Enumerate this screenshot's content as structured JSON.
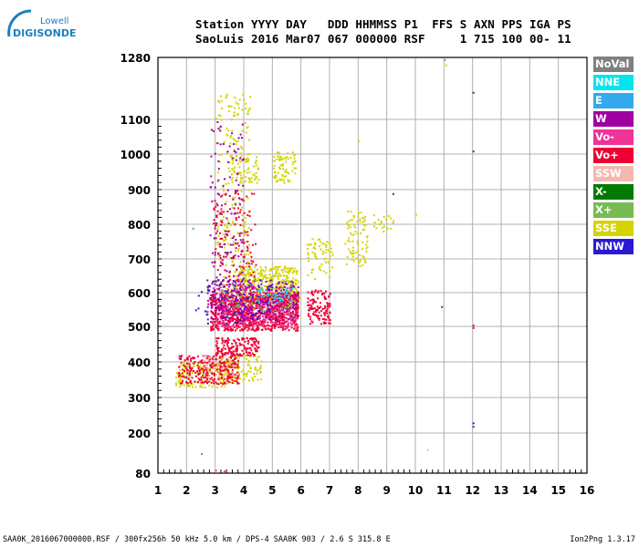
{
  "logo": {
    "line1": "Lowell",
    "line2": "DIGISONDE"
  },
  "header": {
    "line1": "Station YYYY DAY   DDD HHMMSS P1  FFS S AXN PPS IGA PS",
    "line2": "SaoLuis 2016 Mar07 067 000000 RSF     1 715 100 00- 11"
  },
  "legend": [
    {
      "label": "NoVal",
      "color": "#808080"
    },
    {
      "label": "NNE",
      "color": "#00e5ee"
    },
    {
      "label": "E",
      "color": "#33aaee"
    },
    {
      "label": "W",
      "color": "#a000a0"
    },
    {
      "label": "Vo-",
      "color": "#ee3399"
    },
    {
      "label": "Vo+",
      "color": "#ee0033"
    },
    {
      "label": "SSW",
      "color": "#f4b8b0"
    },
    {
      "label": "X-",
      "color": "#007a00"
    },
    {
      "label": "X+",
      "color": "#77bb55"
    },
    {
      "label": "SSE",
      "color": "#d4d400"
    },
    {
      "label": "NNW",
      "color": "#2a1ad0"
    }
  ],
  "footer": {
    "left": "SAA0K_2016067000000.RSF / 300fx256h 50 kHz 5.0 km / DPS-4 SAA0K 903 / 2.6 S 315.8 E",
    "right": "Ion2Png 1.3.17"
  },
  "chart_data": {
    "type": "scatter",
    "xlim": [
      1,
      16
    ],
    "ylim": [
      80,
      1280
    ],
    "x_ticks": [
      "1",
      "2",
      "3",
      "4",
      "5",
      "6",
      "7",
      "8",
      "9",
      "10",
      "11",
      "12",
      "13",
      "14",
      "15",
      "16"
    ],
    "y_ticks": [
      "80",
      "200",
      "300",
      "400",
      "500",
      "600",
      "700",
      "800",
      "900",
      "1000",
      "1100",
      "1280"
    ],
    "y_tick_values": [
      80,
      200,
      300,
      400,
      500,
      600,
      700,
      800,
      900,
      1000,
      1100,
      1280
    ],
    "grid": true,
    "legend_position": "right",
    "clusters": [
      {
        "name": "SSE",
        "color": "#d4d400",
        "x": [
          3.5,
          4.5
        ],
        "y": [
          920,
          1000
        ],
        "n": 60
      },
      {
        "name": "SSE",
        "color": "#d4d400",
        "x": [
          5.0,
          5.8
        ],
        "y": [
          920,
          1010
        ],
        "n": 70
      },
      {
        "name": "SSE",
        "color": "#d4d400",
        "x": [
          6.2,
          7.1
        ],
        "y": [
          640,
          760
        ],
        "n": 60
      },
      {
        "name": "SSE",
        "color": "#d4d400",
        "x": [
          7.5,
          8.3
        ],
        "y": [
          680,
          840
        ],
        "n": 80
      },
      {
        "name": "SSE",
        "color": "#d4d400",
        "x": [
          8.5,
          9.3
        ],
        "y": [
          780,
          830
        ],
        "n": 20
      },
      {
        "name": "SSE",
        "color": "#d4d400",
        "x": [
          3.8,
          5.9
        ],
        "y": [
          560,
          680
        ],
        "n": 400
      },
      {
        "name": "SSE",
        "color": "#d4d400",
        "x": [
          1.6,
          3.8
        ],
        "y": [
          330,
          400
        ],
        "n": 160
      },
      {
        "name": "SSE",
        "color": "#d4d400",
        "x": [
          3.0,
          4.6
        ],
        "y": [
          350,
          420
        ],
        "n": 120
      },
      {
        "name": "SSE",
        "color": "#d4d400",
        "x": [
          3.0,
          4.2
        ],
        "y": [
          600,
          1180
        ],
        "n": 220
      },
      {
        "name": "Vo+",
        "color": "#ee0033",
        "x": [
          2.8,
          5.9
        ],
        "y": [
          490,
          600
        ],
        "n": 900
      },
      {
        "name": "Vo+",
        "color": "#ee0033",
        "x": [
          1.7,
          3.8
        ],
        "y": [
          340,
          420
        ],
        "n": 260
      },
      {
        "name": "Vo+",
        "color": "#ee0033",
        "x": [
          3.0,
          4.5
        ],
        "y": [
          420,
          470
        ],
        "n": 160
      },
      {
        "name": "Vo+",
        "color": "#ee0033",
        "x": [
          6.2,
          7.0
        ],
        "y": [
          510,
          610
        ],
        "n": 120
      },
      {
        "name": "Vo+",
        "color": "#ee0033",
        "x": [
          2.9,
          4.4
        ],
        "y": [
          600,
          900
        ],
        "n": 140
      },
      {
        "name": "Vo-",
        "color": "#ee3399",
        "x": [
          2.9,
          5.9
        ],
        "y": [
          500,
          620
        ],
        "n": 320
      },
      {
        "name": "W",
        "color": "#a000a0",
        "x": [
          2.7,
          5.9
        ],
        "y": [
          520,
          640
        ],
        "n": 360
      },
      {
        "name": "W",
        "color": "#a000a0",
        "x": [
          2.8,
          4.0
        ],
        "y": [
          600,
          1100
        ],
        "n": 120
      },
      {
        "name": "NNW",
        "color": "#2a1ad0",
        "x": [
          2.3,
          5.0
        ],
        "y": [
          510,
          640
        ],
        "n": 60
      },
      {
        "name": "X+",
        "color": "#77bb55",
        "x": [
          3.2,
          5.7
        ],
        "y": [
          540,
          640
        ],
        "n": 70
      },
      {
        "name": "NNE",
        "color": "#00e5ee",
        "x": [
          4.5,
          5.7
        ],
        "y": [
          570,
          620
        ],
        "n": 30
      },
      {
        "name": "SSW",
        "color": "#f4b8b0",
        "x": [
          2.5,
          3.8
        ],
        "y": [
          340,
          420
        ],
        "n": 40
      }
    ],
    "points": [
      {
        "x": 12.0,
        "y": 1180,
        "color": "#a000a0"
      },
      {
        "x": 12.0,
        "y": 1010,
        "color": "#a000a0"
      },
      {
        "x": 12.0,
        "y": 505,
        "color": "#ee0033"
      },
      {
        "x": 12.0,
        "y": 498,
        "color": "#ee0033"
      },
      {
        "x": 12.0,
        "y": 230,
        "color": "#2a1ad0"
      },
      {
        "x": 12.0,
        "y": 220,
        "color": "#a000a0"
      },
      {
        "x": 11.0,
        "y": 1275,
        "color": "#77bb55"
      },
      {
        "x": 11.05,
        "y": 1260,
        "color": "#d4d400"
      },
      {
        "x": 10.9,
        "y": 560,
        "color": "#007a00"
      },
      {
        "x": 8.0,
        "y": 1040,
        "color": "#d4d400"
      },
      {
        "x": 9.2,
        "y": 890,
        "color": "#a000a0"
      },
      {
        "x": 10.0,
        "y": 830,
        "color": "#d4d400"
      },
      {
        "x": 2.2,
        "y": 790,
        "color": "#33aaee"
      },
      {
        "x": 2.5,
        "y": 140,
        "color": "#33aaee"
      },
      {
        "x": 3.0,
        "y": 90,
        "color": "#ee3399"
      },
      {
        "x": 3.3,
        "y": 88,
        "color": "#ee3399"
      },
      {
        "x": 10.4,
        "y": 152,
        "color": "#f4b8b0"
      }
    ]
  }
}
